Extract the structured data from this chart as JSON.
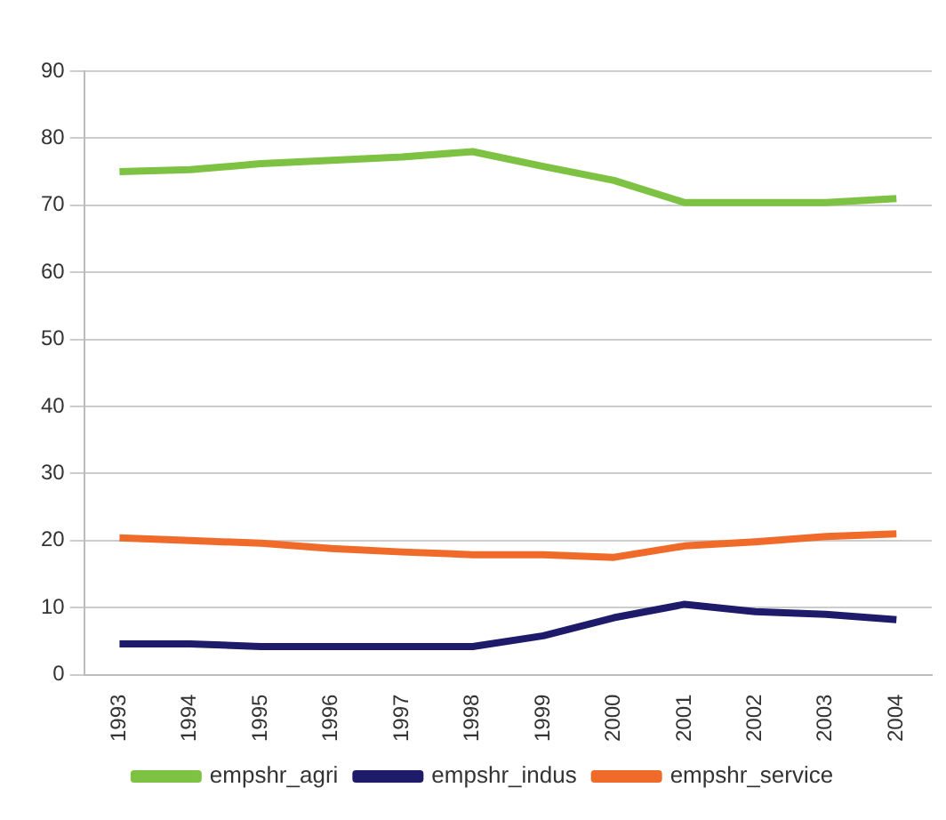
{
  "chart_data": {
    "type": "line",
    "categories": [
      "1993",
      "1994",
      "1995",
      "1996",
      "1997",
      "1998",
      "1999",
      "2000",
      "2001",
      "2002",
      "2003",
      "2004"
    ],
    "series": [
      {
        "name": "empshr_agri",
        "color": "#7dc242",
        "values": [
          75,
          75.3,
          76.2,
          76.7,
          77.2,
          78,
          75.8,
          73.7,
          70.4,
          70.4,
          70.4,
          71
        ]
      },
      {
        "name": "empshr_indus",
        "color": "#1f1b6b",
        "values": [
          4.6,
          4.6,
          4.2,
          4.2,
          4.2,
          4.2,
          5.8,
          8.5,
          10.5,
          9.4,
          9,
          8.2
        ]
      },
      {
        "name": "empshr_service",
        "color": "#f06a2a",
        "values": [
          20.4,
          20,
          19.6,
          18.8,
          18.3,
          17.9,
          17.9,
          17.5,
          19.2,
          19.8,
          20.6,
          21
        ]
      }
    ],
    "ylim": [
      0,
      90
    ],
    "yticks": [
      0,
      10,
      20,
      30,
      40,
      50,
      60,
      70,
      80,
      90
    ],
    "grid": "y",
    "legend": "bottom",
    "marker": "none",
    "line_style": "solid"
  }
}
